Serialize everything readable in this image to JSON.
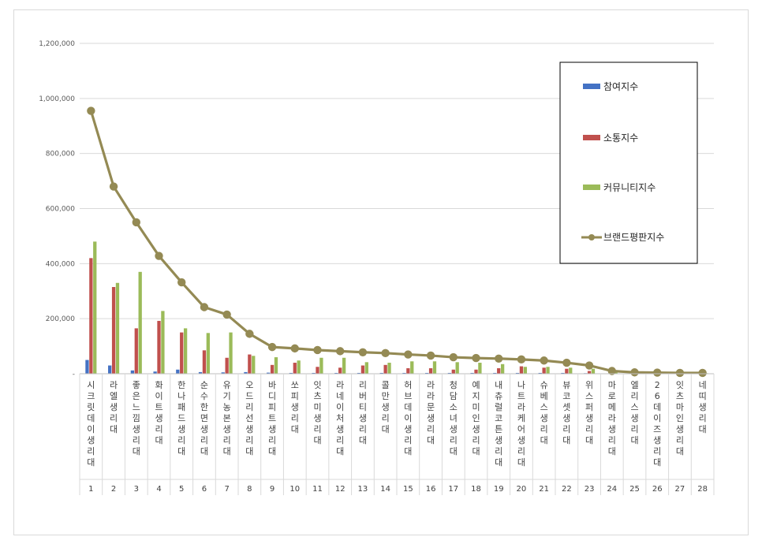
{
  "chart_data": {
    "type": "bar",
    "combo": "bar+line",
    "y_ticks": [
      "-",
      "200,000",
      "400,000",
      "600,000",
      "800,000",
      "1,000,000",
      "1,200,000"
    ],
    "ylim": [
      0,
      1200000
    ],
    "grid": true,
    "legend_position": "right",
    "categories": [
      {
        "name": "시크릿데이생리대",
        "rank": "1"
      },
      {
        "name": "라엘생리대",
        "rank": "2"
      },
      {
        "name": "좋은느낌생리대",
        "rank": "3"
      },
      {
        "name": "화이트생리대",
        "rank": "4"
      },
      {
        "name": "한나패드생리대",
        "rank": "5"
      },
      {
        "name": "순수한면생리대",
        "rank": "6"
      },
      {
        "name": "유기농본생리대",
        "rank": "7"
      },
      {
        "name": "오드리선생리대",
        "rank": "8"
      },
      {
        "name": "바디피트생리대",
        "rank": "9"
      },
      {
        "name": "쏘피생리대",
        "rank": "10"
      },
      {
        "name": "잇츠미생리대",
        "rank": "11"
      },
      {
        "name": "라네이처생리대",
        "rank": "12"
      },
      {
        "name": "리버티생리대",
        "rank": "13"
      },
      {
        "name": "콜만생리대",
        "rank": "14"
      },
      {
        "name": "허브데이생리대",
        "rank": "15"
      },
      {
        "name": "라라문생리대",
        "rank": "16"
      },
      {
        "name": "청담소녀생리대",
        "rank": "17"
      },
      {
        "name": "예지미인생리대",
        "rank": "18"
      },
      {
        "name": "내츄럴코튼생리대",
        "rank": "19"
      },
      {
        "name": "나트라케어생리대",
        "rank": "20"
      },
      {
        "name": "슈베스생리대",
        "rank": "21"
      },
      {
        "name": "뷰코셋생리대",
        "rank": "22"
      },
      {
        "name": "위스퍼생리대",
        "rank": "23"
      },
      {
        "name": "마로메라생리대",
        "rank": "24"
      },
      {
        "name": "엘리스생리대",
        "rank": "25"
      },
      {
        "name": "26데이즈생리대",
        "rank": "26"
      },
      {
        "name": "잇츠마인생리대",
        "rank": "27"
      },
      {
        "name": "네띠생리대",
        "rank": "28"
      }
    ],
    "series": [
      {
        "name": "참여지수",
        "kind": "bar",
        "color": "#4472C4",
        "values": [
          50000,
          30000,
          12000,
          8000,
          15000,
          6000,
          5000,
          6000,
          4000,
          3000,
          3000,
          3000,
          3000,
          3000,
          3000,
          3000,
          3000,
          3000,
          3000,
          3000,
          3000,
          3000,
          2000,
          1000,
          500,
          500,
          500,
          500
        ]
      },
      {
        "name": "소통지수",
        "kind": "bar",
        "color": "#C0504D",
        "values": [
          420000,
          315000,
          165000,
          192000,
          150000,
          85000,
          58000,
          70000,
          32000,
          40000,
          25000,
          22000,
          30000,
          32000,
          20000,
          20000,
          15000,
          15000,
          20000,
          27000,
          22000,
          18000,
          10000,
          3000,
          2000,
          2000,
          1000,
          1000
        ]
      },
      {
        "name": "커뮤니티지수",
        "kind": "bar",
        "color": "#9BBB59",
        "values": [
          480000,
          330000,
          370000,
          228000,
          165000,
          148000,
          150000,
          65000,
          60000,
          48000,
          58000,
          58000,
          42000,
          40000,
          45000,
          45000,
          42000,
          40000,
          35000,
          25000,
          25000,
          22000,
          18000,
          8000,
          3000,
          3000,
          2000,
          2000
        ]
      },
      {
        "name": "브랜드평판지수",
        "kind": "line",
        "color": "#948A54",
        "values": [
          955000,
          680000,
          550000,
          428000,
          332000,
          242000,
          215000,
          145000,
          97000,
          92000,
          86000,
          82000,
          78000,
          75000,
          70000,
          66000,
          60000,
          57000,
          55000,
          52000,
          48000,
          40000,
          30000,
          10000,
          5000,
          4000,
          3000,
          3000
        ]
      }
    ]
  }
}
